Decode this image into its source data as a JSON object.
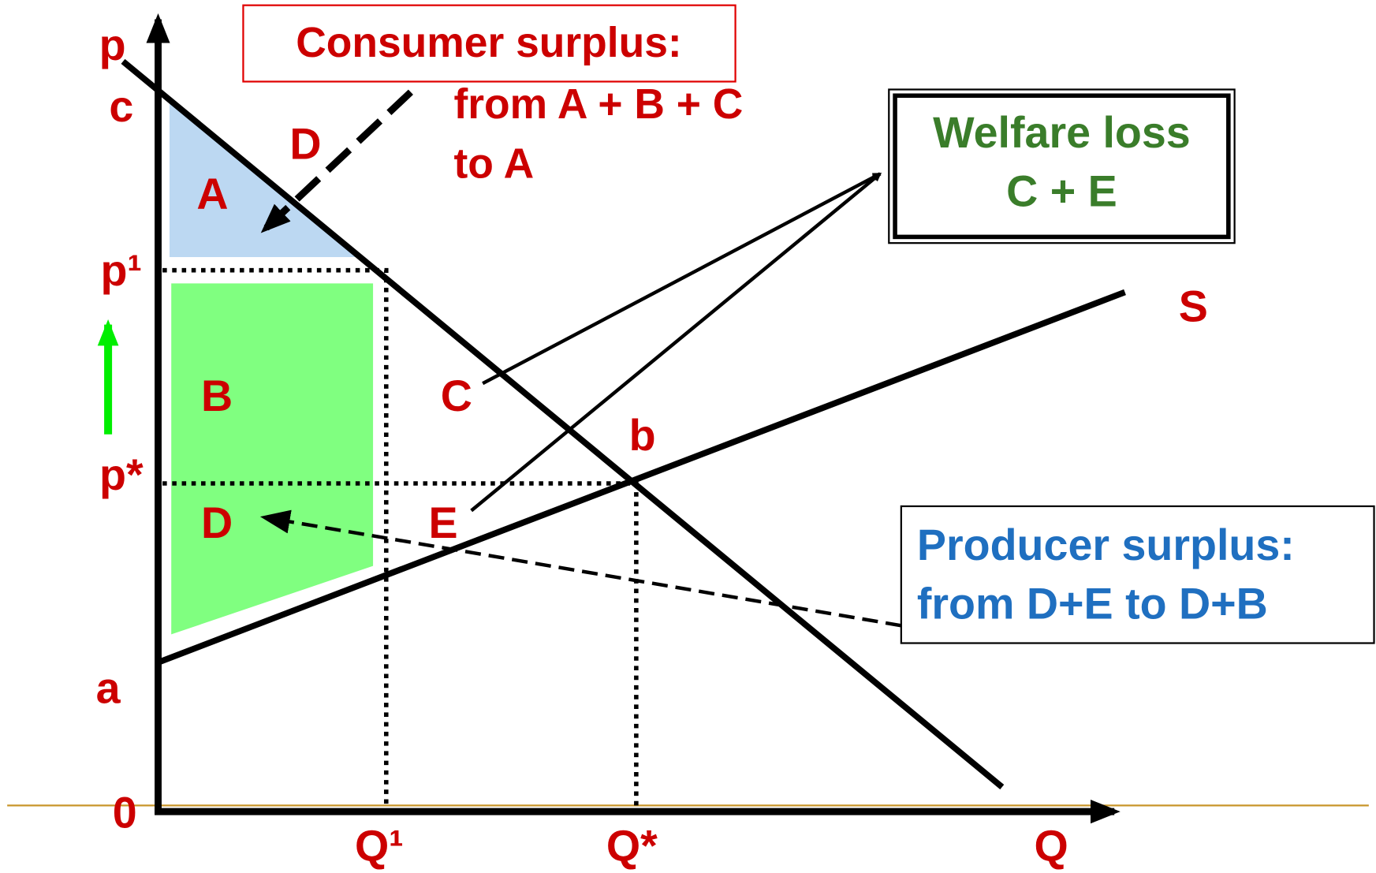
{
  "axis": {
    "y": "p",
    "x": "Q",
    "origin": "0"
  },
  "price_labels": {
    "c": "c",
    "p1": "p¹",
    "pstar": "p*",
    "a": "a"
  },
  "quantity_labels": {
    "q1": "Q¹",
    "qstar": "Q*"
  },
  "region_labels": {
    "demand": "D",
    "A": "A",
    "B": "B",
    "C": "C",
    "D": "D",
    "E": "E",
    "equilibrium": "b",
    "supply": "S"
  },
  "consumer_surplus": {
    "title": "Consumer surplus:",
    "lines": [
      "from A + B + C",
      "to A"
    ]
  },
  "welfare_loss": {
    "lines": [
      "Welfare loss",
      "C + E"
    ]
  },
  "producer_surplus": {
    "lines": [
      "Producer surplus:",
      "from D+E to D+B"
    ]
  }
}
